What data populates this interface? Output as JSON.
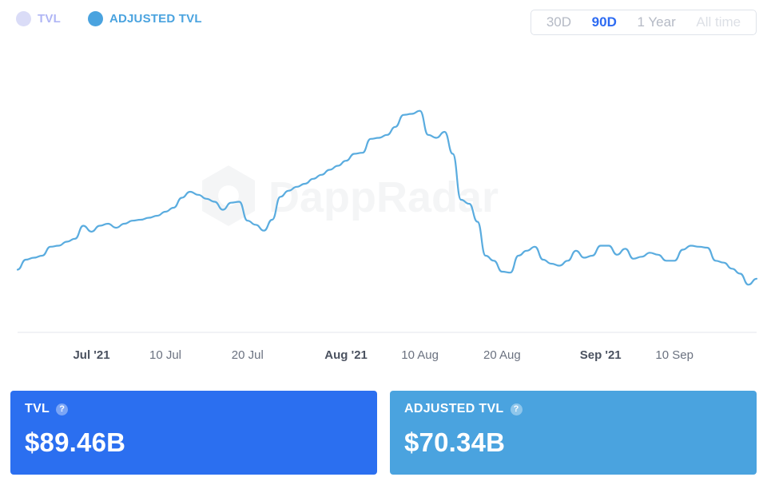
{
  "legend": [
    {
      "label": "TVL",
      "color": "#dadcf7",
      "text_color": "#b0b6f5"
    },
    {
      "label": "ADJUSTED TVL",
      "color": "#4aa3df",
      "text_color": "#4aa3df"
    }
  ],
  "range_selector": {
    "options": [
      {
        "label": "30D",
        "state": "normal"
      },
      {
        "label": "90D",
        "state": "active"
      },
      {
        "label": "1 Year",
        "state": "normal"
      },
      {
        "label": "All time",
        "state": "disabled"
      }
    ]
  },
  "watermark": "DappRadar",
  "chart_data": {
    "type": "line",
    "x_axis": {
      "start": "2021-06-22",
      "end": "2021-09-20",
      "ticks": [
        {
          "label": "Jul '21",
          "date": "2021-07-01",
          "bold": true
        },
        {
          "label": "10 Jul",
          "date": "2021-07-10",
          "bold": false
        },
        {
          "label": "20 Jul",
          "date": "2021-07-20",
          "bold": false
        },
        {
          "label": "Aug '21",
          "date": "2021-08-01",
          "bold": true
        },
        {
          "label": "10 Aug",
          "date": "2021-08-10",
          "bold": false
        },
        {
          "label": "20 Aug",
          "date": "2021-08-20",
          "bold": false
        },
        {
          "label": "Sep '21",
          "date": "2021-09-01",
          "bold": true
        },
        {
          "label": "10 Sep",
          "date": "2021-09-10",
          "bold": false
        }
      ]
    },
    "y_range": [
      56,
      80
    ],
    "grid": false,
    "legend_position": "top-left",
    "series": [
      {
        "name": "ADJUSTED TVL",
        "color": "#5aacdf",
        "points": [
          [
            "2021-06-22",
            61.0
          ],
          [
            "2021-06-23",
            62.0
          ],
          [
            "2021-06-24",
            62.2
          ],
          [
            "2021-06-25",
            62.4
          ],
          [
            "2021-06-26",
            63.3
          ],
          [
            "2021-06-27",
            63.4
          ],
          [
            "2021-06-28",
            63.8
          ],
          [
            "2021-06-29",
            64.1
          ],
          [
            "2021-06-30",
            65.4
          ],
          [
            "2021-07-01",
            64.8
          ],
          [
            "2021-07-02",
            65.4
          ],
          [
            "2021-07-03",
            65.6
          ],
          [
            "2021-07-04",
            65.2
          ],
          [
            "2021-07-05",
            65.6
          ],
          [
            "2021-07-06",
            65.9
          ],
          [
            "2021-07-07",
            66.0
          ],
          [
            "2021-07-08",
            66.2
          ],
          [
            "2021-07-09",
            66.4
          ],
          [
            "2021-07-10",
            66.8
          ],
          [
            "2021-07-11",
            67.2
          ],
          [
            "2021-07-12",
            68.2
          ],
          [
            "2021-07-13",
            68.8
          ],
          [
            "2021-07-14",
            68.5
          ],
          [
            "2021-07-15",
            68.1
          ],
          [
            "2021-07-16",
            67.8
          ],
          [
            "2021-07-17",
            67.0
          ],
          [
            "2021-07-18",
            67.7
          ],
          [
            "2021-07-19",
            67.8
          ],
          [
            "2021-07-20",
            65.9
          ],
          [
            "2021-07-21",
            65.5
          ],
          [
            "2021-07-22",
            64.9
          ],
          [
            "2021-07-23",
            66.0
          ],
          [
            "2021-07-24",
            68.3
          ],
          [
            "2021-07-25",
            68.9
          ],
          [
            "2021-07-26",
            69.3
          ],
          [
            "2021-07-27",
            69.6
          ],
          [
            "2021-07-28",
            70.1
          ],
          [
            "2021-07-29",
            70.5
          ],
          [
            "2021-07-30",
            71.0
          ],
          [
            "2021-07-31",
            71.4
          ],
          [
            "2021-08-01",
            71.9
          ],
          [
            "2021-08-02",
            72.6
          ],
          [
            "2021-08-03",
            72.7
          ],
          [
            "2021-08-04",
            74.1
          ],
          [
            "2021-08-05",
            74.2
          ],
          [
            "2021-08-06",
            74.5
          ],
          [
            "2021-08-07",
            75.3
          ],
          [
            "2021-08-08",
            76.5
          ],
          [
            "2021-08-09",
            76.6
          ],
          [
            "2021-08-10",
            76.9
          ],
          [
            "2021-08-11",
            74.5
          ],
          [
            "2021-08-12",
            74.2
          ],
          [
            "2021-08-13",
            74.8
          ],
          [
            "2021-08-14",
            72.6
          ],
          [
            "2021-08-15",
            68.0
          ],
          [
            "2021-08-16",
            67.6
          ],
          [
            "2021-08-17",
            65.8
          ],
          [
            "2021-08-18",
            62.4
          ],
          [
            "2021-08-19",
            61.9
          ],
          [
            "2021-08-20",
            60.8
          ],
          [
            "2021-08-21",
            60.7
          ],
          [
            "2021-08-22",
            62.4
          ],
          [
            "2021-08-23",
            62.9
          ],
          [
            "2021-08-24",
            63.3
          ],
          [
            "2021-08-25",
            62.0
          ],
          [
            "2021-08-26",
            61.6
          ],
          [
            "2021-08-27",
            61.4
          ],
          [
            "2021-08-28",
            61.9
          ],
          [
            "2021-08-29",
            62.9
          ],
          [
            "2021-08-30",
            62.2
          ],
          [
            "2021-08-31",
            62.4
          ],
          [
            "2021-09-01",
            63.4
          ],
          [
            "2021-09-02",
            63.4
          ],
          [
            "2021-09-03",
            62.5
          ],
          [
            "2021-09-04",
            63.1
          ],
          [
            "2021-09-05",
            62.1
          ],
          [
            "2021-09-06",
            62.3
          ],
          [
            "2021-09-07",
            62.7
          ],
          [
            "2021-09-08",
            62.5
          ],
          [
            "2021-09-09",
            61.9
          ],
          [
            "2021-09-10",
            61.9
          ],
          [
            "2021-09-11",
            63.0
          ],
          [
            "2021-09-12",
            63.4
          ],
          [
            "2021-09-13",
            63.3
          ],
          [
            "2021-09-14",
            63.2
          ],
          [
            "2021-09-15",
            61.9
          ],
          [
            "2021-09-16",
            61.7
          ],
          [
            "2021-09-17",
            61.1
          ],
          [
            "2021-09-18",
            60.6
          ],
          [
            "2021-09-19",
            59.5
          ],
          [
            "2021-09-20",
            60.1
          ]
        ]
      }
    ]
  },
  "cards": [
    {
      "title": "TVL",
      "value": "$89.46B",
      "color": "#2b6ff0"
    },
    {
      "title": "ADJUSTED TVL",
      "value": "$70.34B",
      "color": "#4aa3df"
    }
  ]
}
